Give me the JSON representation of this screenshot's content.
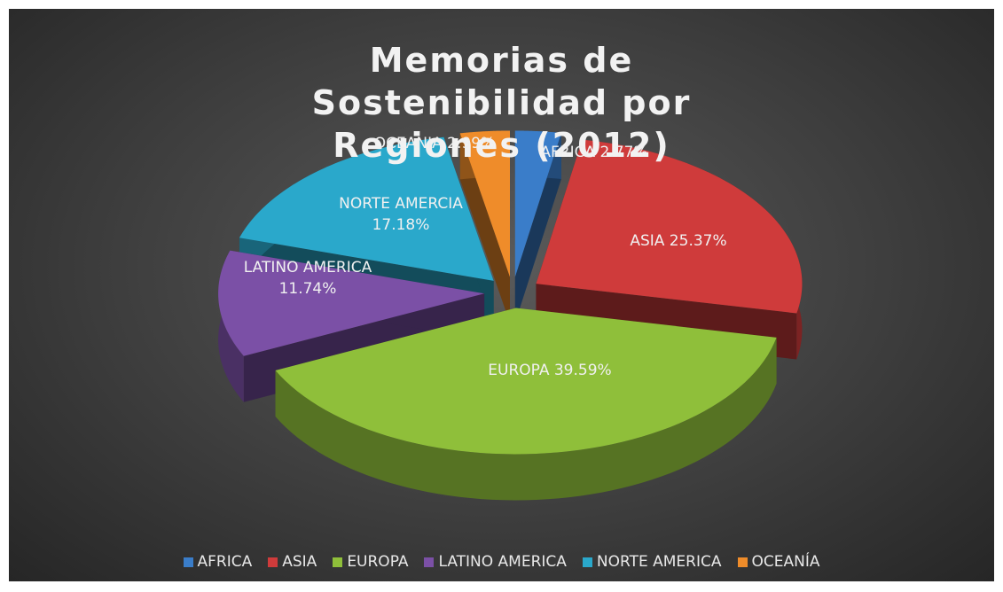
{
  "chart_data": {
    "type": "pie3d",
    "title": "Memorias de Sostenibilidad por Regiones (2012)",
    "categories": [
      "AFRICA",
      "ASIA",
      "EUROPA",
      "LATINO AMERICA",
      "NORTE AMERICA",
      "OCEANÍA"
    ],
    "values": [
      2.77,
      25.37,
      39.59,
      11.74,
      17.18,
      2.99
    ],
    "value_labels": [
      "AFRICA 2.77%",
      "ASIA 25.37%",
      "EUROPA 39.59%",
      "LATINO AMERICA 11.74%",
      "NORTE AMERCIA 17.18%",
      "OCEANIA 2.99%"
    ],
    "colors": [
      "#3a7dc9",
      "#cf3b3b",
      "#8fbf3a",
      "#7b50a6",
      "#2aa8cb",
      "#ef8c2a"
    ],
    "legend": "bottom"
  }
}
